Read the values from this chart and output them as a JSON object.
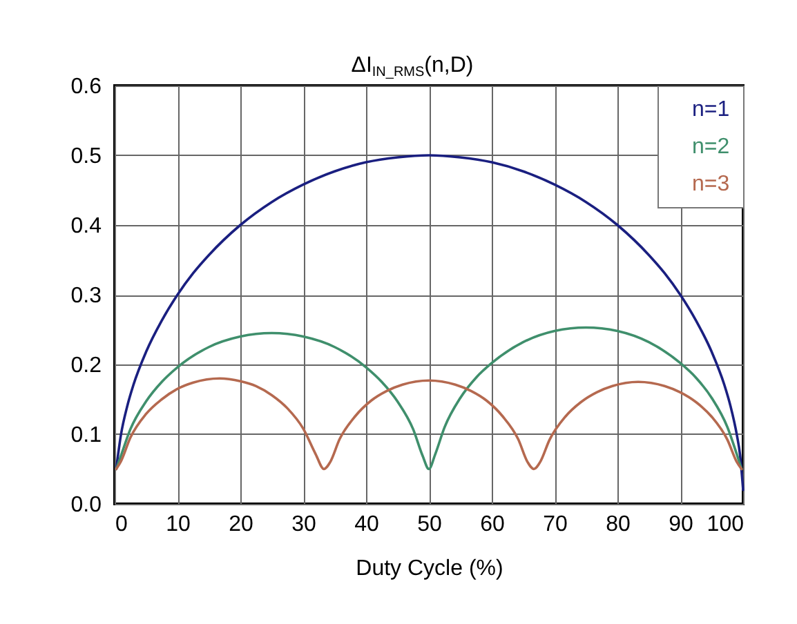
{
  "chart_data": {
    "type": "line",
    "title": "ΔI$_{IN_RMS}$(n,D)",
    "xlabel": "Duty Cycle (%)",
    "xlim": [
      0,
      100
    ],
    "xticks": [
      0,
      10,
      20,
      30,
      40,
      50,
      60,
      70,
      80,
      90,
      100
    ],
    "ylim": [
      0,
      0.6
    ],
    "yticks": [
      {
        "value": 0,
        "label": "0.0"
      },
      0.1,
      0.2,
      0.3,
      0.4,
      0.5,
      0.6
    ],
    "grid": true,
    "legend": "top right",
    "series": [
      {
        "name": "n=1",
        "color": "#1a1f80",
        "x": [
          0.25,
          1,
          2,
          3,
          5,
          7.5,
          10,
          12.5,
          15,
          20,
          25,
          30,
          35,
          40,
          45,
          50,
          55,
          60,
          65,
          70,
          75,
          80,
          85,
          87.5,
          90,
          92.5,
          95,
          97,
          98,
          99,
          99.5,
          100
        ],
        "values": [
          0.05,
          0.099,
          0.14,
          0.171,
          0.218,
          0.263,
          0.3,
          0.331,
          0.357,
          0.4,
          0.433,
          0.458,
          0.477,
          0.49,
          0.497,
          0.5,
          0.497,
          0.49,
          0.477,
          0.458,
          0.433,
          0.4,
          0.357,
          0.331,
          0.3,
          0.263,
          0.218,
          0.171,
          0.14,
          0.099,
          0.071,
          0.02
        ]
      },
      {
        "name": "n=2",
        "color": "#3f8f6c",
        "x": [
          0.25,
          1,
          2.5,
          5,
          7.5,
          10,
          15,
          20,
          25,
          30,
          35,
          40,
          42.5,
          45,
          47.5,
          49,
          50,
          51,
          52.5,
          55,
          57.5,
          60,
          65,
          70,
          75,
          80,
          85,
          90,
          92.5,
          95,
          97.5,
          99,
          99.75
        ],
        "values": [
          0.05,
          0.069,
          0.107,
          0.147,
          0.175,
          0.196,
          0.225,
          0.24,
          0.245,
          0.24,
          0.225,
          0.196,
          0.175,
          0.147,
          0.107,
          0.069,
          0.05,
          0.071,
          0.11,
          0.152,
          0.181,
          0.202,
          0.232,
          0.248,
          0.253,
          0.248,
          0.232,
          0.202,
          0.181,
          0.152,
          0.11,
          0.071,
          0.05
        ]
      },
      {
        "name": "n=3",
        "color": "#b5694f",
        "x": [
          0.25,
          1,
          2.5,
          5,
          7.5,
          10,
          12.5,
          16.7,
          20,
          22.5,
          25,
          27.5,
          30,
          32,
          33.3,
          34.3,
          35.8,
          38.3,
          40.8,
          43.3,
          45.8,
          50,
          54.2,
          56.7,
          59.2,
          61.7,
          64.2,
          65.7,
          66.7,
          67.7,
          69.2,
          71.7,
          74.2,
          76.7,
          79.2,
          83.3,
          87.5,
          90,
          92.5,
          95,
          97.5,
          99,
          99.75
        ],
        "values": [
          0.05,
          0.061,
          0.095,
          0.129,
          0.15,
          0.165,
          0.174,
          0.18,
          0.176,
          0.169,
          0.156,
          0.137,
          0.108,
          0.071,
          0.05,
          0.06,
          0.093,
          0.126,
          0.148,
          0.162,
          0.171,
          0.177,
          0.171,
          0.162,
          0.148,
          0.126,
          0.093,
          0.06,
          0.05,
          0.06,
          0.092,
          0.125,
          0.146,
          0.16,
          0.169,
          0.175,
          0.169,
          0.16,
          0.146,
          0.125,
          0.092,
          0.06,
          0.05
        ]
      }
    ]
  }
}
